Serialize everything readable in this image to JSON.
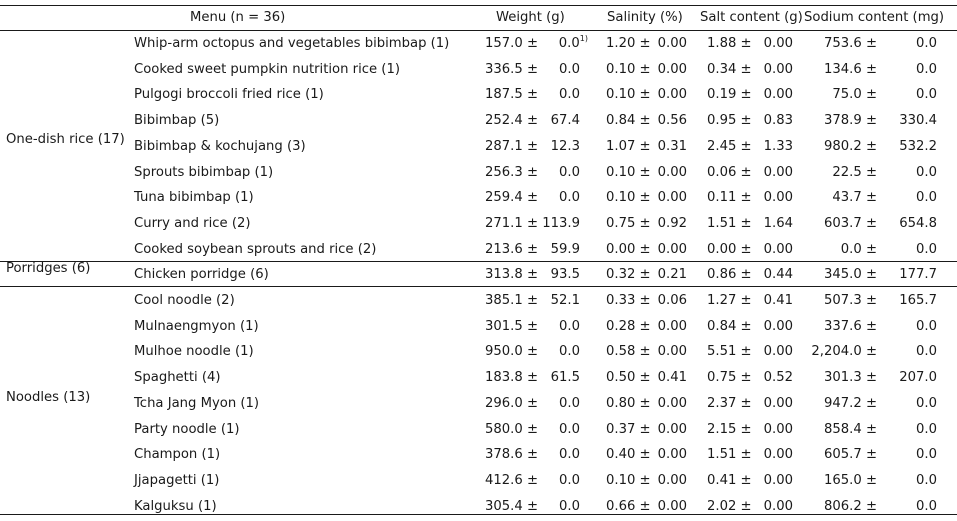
{
  "header": {
    "menu": "Menu (n = 36)",
    "weight": "Weight (g)",
    "salinity": "Salinity (%)",
    "salt": "Salt content (g)",
    "sodium": "Sodium content (mg)"
  },
  "footnote_marker": "1)",
  "groups": [
    {
      "name": "One-dish rice (17)"
    },
    {
      "name": "Porridges (6)"
    },
    {
      "name": "Noodles (13)"
    }
  ],
  "rows": [
    {
      "menu": "Whip-arm octopus and vegetables bibimbap (1)",
      "w_m": "157.0 ±",
      "w_s": "0.0",
      "s_m": "1.20 ±",
      "s_s": "0.00",
      "sc_m": "1.88 ±",
      "sc_s": "0.00",
      "na_m": "753.6 ±",
      "na_s": "0.0"
    },
    {
      "menu": "Cooked sweet pumpkin nutrition rice (1)",
      "w_m": "336.5 ±",
      "w_s": "0.0",
      "s_m": "0.10 ±",
      "s_s": "0.00",
      "sc_m": "0.34 ±",
      "sc_s": "0.00",
      "na_m": "134.6 ±",
      "na_s": "0.0"
    },
    {
      "menu": "Pulgogi broccoli fried rice (1)",
      "w_m": "187.5 ±",
      "w_s": "0.0",
      "s_m": "0.10 ±",
      "s_s": "0.00",
      "sc_m": "0.19 ±",
      "sc_s": "0.00",
      "na_m": "75.0 ±",
      "na_s": "0.0"
    },
    {
      "menu": "Bibimbap (5)",
      "w_m": "252.4 ±",
      "w_s": "67.4",
      "s_m": "0.84 ±",
      "s_s": "0.56",
      "sc_m": "0.95 ±",
      "sc_s": "0.83",
      "na_m": "378.9 ±",
      "na_s": "330.4"
    },
    {
      "menu": "Bibimbap & kochujang (3)",
      "w_m": "287.1 ±",
      "w_s": "12.3",
      "s_m": "1.07 ±",
      "s_s": "0.31",
      "sc_m": "2.45 ±",
      "sc_s": "1.33",
      "na_m": "980.2 ±",
      "na_s": "532.2"
    },
    {
      "menu": "Sprouts bibimbap (1)",
      "w_m": "256.3 ±",
      "w_s": "0.0",
      "s_m": "0.10 ±",
      "s_s": "0.00",
      "sc_m": "0.06 ±",
      "sc_s": "0.00",
      "na_m": "22.5 ±",
      "na_s": "0.0"
    },
    {
      "menu": "Tuna bibimbap (1)",
      "w_m": "259.4 ±",
      "w_s": "0.0",
      "s_m": "0.10 ±",
      "s_s": "0.00",
      "sc_m": "0.11 ±",
      "sc_s": "0.00",
      "na_m": "43.7 ±",
      "na_s": "0.0"
    },
    {
      "menu": "Curry and rice (2)",
      "w_m": "271.1 ±",
      "w_s": "113.9",
      "s_m": "0.75 ±",
      "s_s": "0.92",
      "sc_m": "1.51 ±",
      "sc_s": "1.64",
      "na_m": "603.7 ±",
      "na_s": "654.8"
    },
    {
      "menu": "Cooked soybean sprouts and rice (2)",
      "w_m": "213.6 ±",
      "w_s": "59.9",
      "s_m": "0.00 ±",
      "s_s": "0.00",
      "sc_m": "0.00 ±",
      "sc_s": "0.00",
      "na_m": "0.0 ±",
      "na_s": "0.0"
    },
    {
      "menu": "Chicken porridge (6)",
      "w_m": "313.8 ±",
      "w_s": "93.5",
      "s_m": "0.32 ±",
      "s_s": "0.21",
      "sc_m": "0.86 ±",
      "sc_s": "0.44",
      "na_m": "345.0 ±",
      "na_s": "177.7"
    },
    {
      "menu": "Cool noodle (2)",
      "w_m": "385.1 ±",
      "w_s": "52.1",
      "s_m": "0.33 ±",
      "s_s": "0.06",
      "sc_m": "1.27 ±",
      "sc_s": "0.41",
      "na_m": "507.3 ±",
      "na_s": "165.7"
    },
    {
      "menu": "Mulnaengmyon (1)",
      "w_m": "301.5 ±",
      "w_s": "0.0",
      "s_m": "0.28 ±",
      "s_s": "0.00",
      "sc_m": "0.84 ±",
      "sc_s": "0.00",
      "na_m": "337.6 ±",
      "na_s": "0.0"
    },
    {
      "menu": "Mulhoe noodle (1)",
      "w_m": "950.0 ±",
      "w_s": "0.0",
      "s_m": "0.58 ±",
      "s_s": "0.00",
      "sc_m": "5.51 ±",
      "sc_s": "0.00",
      "na_m": "2,204.0 ±",
      "na_s": "0.0"
    },
    {
      "menu": "Spaghetti (4)",
      "w_m": "183.8 ±",
      "w_s": "61.5",
      "s_m": "0.50 ±",
      "s_s": "0.41",
      "sc_m": "0.75 ±",
      "sc_s": "0.52",
      "na_m": "301.3 ±",
      "na_s": "207.0"
    },
    {
      "menu": "Tcha Jang Myon (1)",
      "w_m": "296.0 ±",
      "w_s": "0.0",
      "s_m": "0.80 ±",
      "s_s": "0.00",
      "sc_m": "2.37 ±",
      "sc_s": "0.00",
      "na_m": "947.2 ±",
      "na_s": "0.0"
    },
    {
      "menu": "Party noodle (1)",
      "w_m": "580.0 ±",
      "w_s": "0.0",
      "s_m": "0.37 ±",
      "s_s": "0.00",
      "sc_m": "2.15 ±",
      "sc_s": "0.00",
      "na_m": "858.4 ±",
      "na_s": "0.0"
    },
    {
      "menu": "Champon (1)",
      "w_m": "378.6 ±",
      "w_s": "0.0",
      "s_m": "0.40 ±",
      "s_s": "0.00",
      "sc_m": "1.51 ±",
      "sc_s": "0.00",
      "na_m": "605.7 ±",
      "na_s": "0.0"
    },
    {
      "menu": "Jjapagetti (1)",
      "w_m": "412.6 ±",
      "w_s": "0.0",
      "s_m": "0.10 ±",
      "s_s": "0.00",
      "sc_m": "0.41 ±",
      "sc_s": "0.00",
      "na_m": "165.0 ±",
      "na_s": "0.0"
    },
    {
      "menu": "Kalguksu (1)",
      "w_m": "305.4 ±",
      "w_s": "0.0",
      "s_m": "0.66 ±",
      "s_s": "0.00",
      "sc_m": "2.02 ±",
      "sc_s": "0.00",
      "na_m": "806.2 ±",
      "na_s": "0.0"
    }
  ]
}
